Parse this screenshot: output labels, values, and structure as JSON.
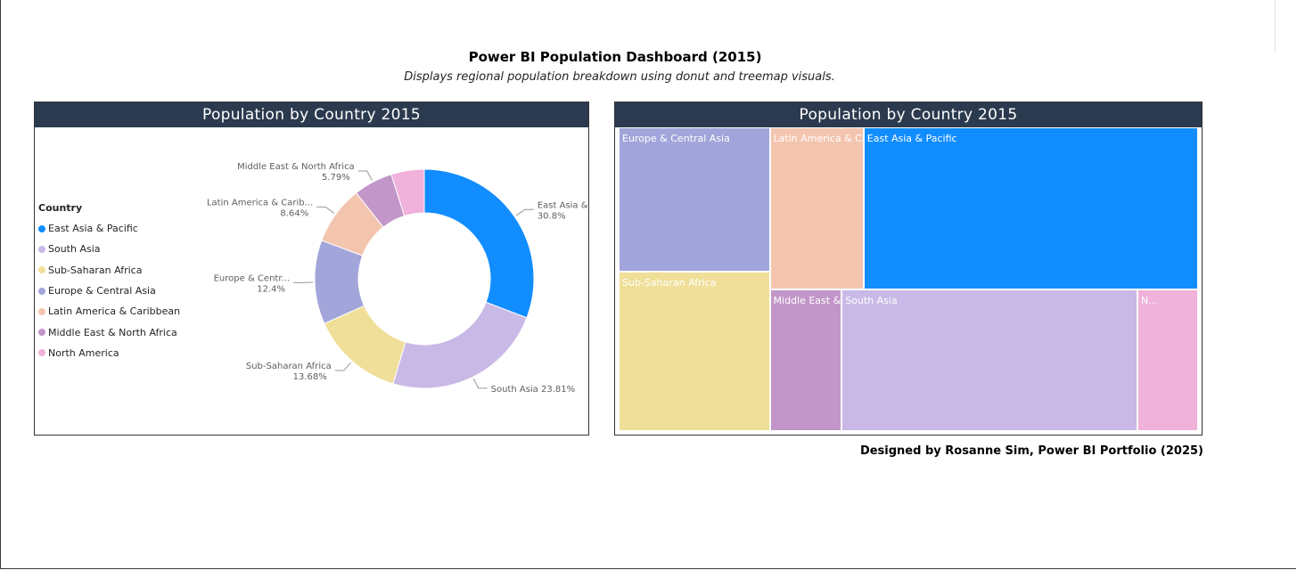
{
  "page": {
    "title": "Power BI Population Dashboard (2015)",
    "subtitle": "Displays regional population breakdown using donut and treemap visuals.",
    "footer": "Designed by Rosanne Sim, Power BI Portfolio (2025)"
  },
  "colors": {
    "header_bg": "#2b3a4e",
    "East Asia & Pacific": "#118dff",
    "South Asia": "#c8b9e6",
    "Sub-Saharan Africa": "#efdf98",
    "Europe & Central Asia": "#a1a5d9",
    "Latin America & Caribbean": "#f3c5ae",
    "Middle East & North Africa": "#c296c9",
    "North America": "#f0b1da"
  },
  "chart_data": [
    {
      "type": "pie",
      "title": "Population by Country 2015",
      "legend_title": "Country",
      "legend_position": "left",
      "hole": "donut",
      "categories": [
        "East Asia & Pacific",
        "South Asia",
        "Sub-Saharan Africa",
        "Europe & Central Asia",
        "Latin America & Caribbean",
        "Middle East & North Africa",
        "North America"
      ],
      "values": [
        30.8,
        23.81,
        13.68,
        12.4,
        8.64,
        5.79,
        4.88
      ],
      "slice_labels": [
        {
          "name": "East Asia & Pacific",
          "value": "30.8%"
        },
        {
          "name": "South Asia",
          "value": "23.81%"
        },
        {
          "name": "Sub-Saharan Africa",
          "value": "13.68%"
        },
        {
          "name": "Europe & Centr...",
          "value": "12.4%"
        },
        {
          "name": "Latin America & Carib...",
          "value": "8.64%"
        },
        {
          "name": "Middle East & North Africa",
          "value": "5.79%"
        }
      ]
    },
    {
      "type": "treemap",
      "title": "Population by Country 2015",
      "tiles": [
        {
          "name": "Europe & Central Asia",
          "label": "Europe & Central Asia",
          "share": 12.4
        },
        {
          "name": "Sub-Saharan Africa",
          "label": "Sub-Saharan Africa",
          "share": 13.68
        },
        {
          "name": "Latin America & Caribbean",
          "label": "Latin America & Caribbean",
          "share": 8.64
        },
        {
          "name": "East Asia & Pacific",
          "label": "East Asia & Pacific",
          "share": 30.8
        },
        {
          "name": "Middle East & North Africa",
          "label": "Middle East & North Africa",
          "share": 5.79
        },
        {
          "name": "South Asia",
          "label": "South Asia",
          "share": 23.81
        },
        {
          "name": "North America",
          "label": "N...",
          "share": 4.88
        }
      ]
    }
  ]
}
